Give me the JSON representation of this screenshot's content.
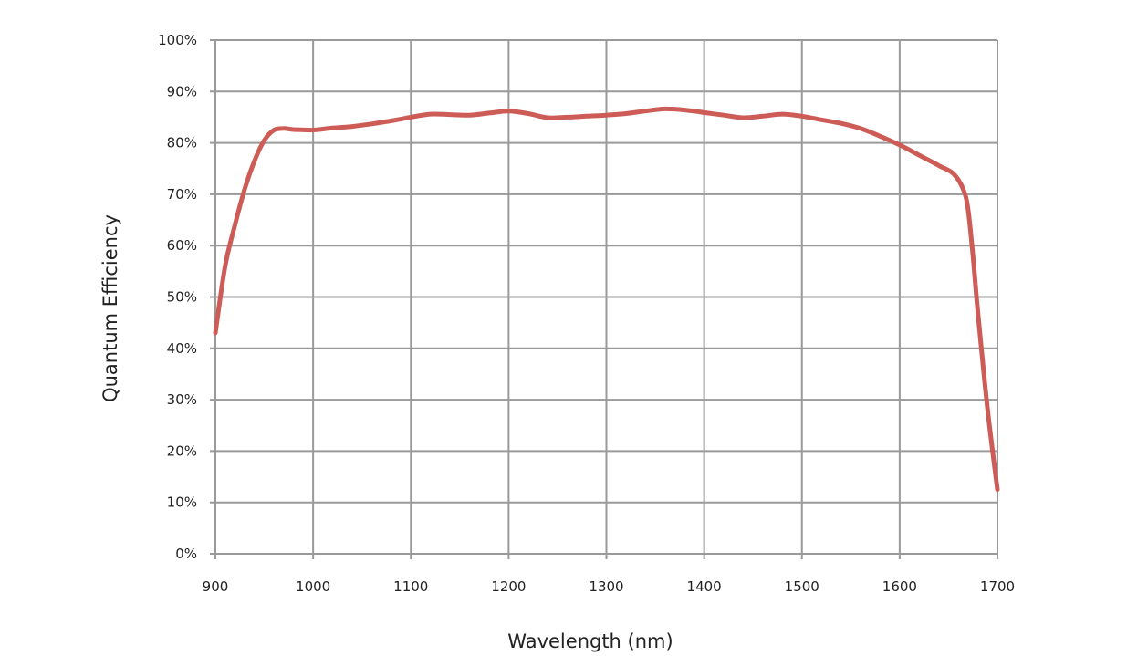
{
  "chart_data": {
    "type": "line",
    "title": "",
    "xlabel": "Wavelength (nm)",
    "ylabel": "Quantum Efficiency",
    "xlim": [
      900,
      1700
    ],
    "ylim": [
      0,
      100
    ],
    "grid": true,
    "x_ticks": [
      900,
      1000,
      1100,
      1200,
      1300,
      1400,
      1500,
      1600,
      1700
    ],
    "x_tick_labels": [
      "900",
      "1000",
      "1100",
      "1200",
      "1300",
      "1400",
      "1500",
      "1600",
      "1700"
    ],
    "y_ticks": [
      0,
      10,
      20,
      30,
      40,
      50,
      60,
      70,
      80,
      90,
      100
    ],
    "y_tick_labels": [
      "0%",
      "10%",
      "20%",
      "30%",
      "40%",
      "50%",
      "60%",
      "70%",
      "80%",
      "90%",
      "100%"
    ],
    "line_color": "#cd5c57",
    "grid_color": "#9a9a9a",
    "series": [
      {
        "x": [
          900,
          910,
          920,
          930,
          940,
          950,
          960,
          970,
          980,
          1000,
          1020,
          1040,
          1060,
          1080,
          1100,
          1120,
          1140,
          1160,
          1180,
          1200,
          1220,
          1240,
          1260,
          1280,
          1300,
          1320,
          1340,
          1360,
          1380,
          1400,
          1420,
          1440,
          1460,
          1480,
          1500,
          1520,
          1540,
          1560,
          1580,
          1600,
          1620,
          1640,
          1655,
          1665,
          1670,
          1675,
          1680,
          1690,
          1700
        ],
        "y": [
          43,
          56,
          64,
          71,
          76.5,
          80.5,
          82.5,
          82.8,
          82.6,
          82.5,
          82.9,
          83.2,
          83.7,
          84.3,
          85,
          85.6,
          85.5,
          85.4,
          85.8,
          86.2,
          85.7,
          84.9,
          85,
          85.2,
          85.4,
          85.7,
          86.2,
          86.6,
          86.4,
          85.9,
          85.4,
          84.9,
          85.2,
          85.6,
          85.2,
          84.5,
          83.8,
          82.8,
          81.3,
          79.6,
          77.6,
          75.6,
          74,
          71,
          67,
          58,
          47,
          28,
          12.5
        ]
      }
    ]
  }
}
